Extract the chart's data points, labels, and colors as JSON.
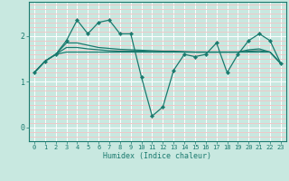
{
  "xlabel": "Humidex (Indice chaleur)",
  "bg_color": "#c8e8e0",
  "plot_bg_color": "#c8e8e0",
  "grid_color_v": "#ffffff",
  "grid_color_h": "#f0c8c8",
  "line_color": "#1a7a6e",
  "x_ticks": [
    0,
    1,
    2,
    3,
    4,
    5,
    6,
    7,
    8,
    9,
    10,
    11,
    12,
    13,
    14,
    15,
    16,
    17,
    18,
    19,
    20,
    21,
    22,
    23
  ],
  "y_ticks": [
    0,
    1,
    2
  ],
  "ylim": [
    -0.3,
    2.75
  ],
  "xlim": [
    -0.5,
    23.5
  ],
  "series1": [
    1.2,
    1.45,
    1.6,
    1.9,
    2.35,
    2.05,
    2.3,
    2.35,
    2.05,
    2.05,
    1.1,
    0.25,
    0.45,
    1.25,
    1.6,
    1.55,
    1.6,
    1.85,
    1.2,
    1.6,
    1.9,
    2.05,
    1.9,
    1.4
  ],
  "series2": [
    1.2,
    1.45,
    1.6,
    1.65,
    1.65,
    1.65,
    1.65,
    1.65,
    1.65,
    1.65,
    1.65,
    1.65,
    1.65,
    1.65,
    1.65,
    1.65,
    1.65,
    1.65,
    1.65,
    1.65,
    1.65,
    1.65,
    1.65,
    1.4
  ],
  "series3": [
    1.2,
    1.45,
    1.6,
    1.75,
    1.75,
    1.72,
    1.7,
    1.68,
    1.67,
    1.67,
    1.67,
    1.66,
    1.66,
    1.66,
    1.65,
    1.65,
    1.65,
    1.65,
    1.65,
    1.65,
    1.67,
    1.68,
    1.65,
    1.4
  ],
  "series4": [
    1.2,
    1.45,
    1.6,
    1.85,
    1.85,
    1.8,
    1.75,
    1.73,
    1.71,
    1.7,
    1.69,
    1.68,
    1.67,
    1.67,
    1.66,
    1.65,
    1.65,
    1.65,
    1.65,
    1.65,
    1.7,
    1.72,
    1.65,
    1.4
  ]
}
